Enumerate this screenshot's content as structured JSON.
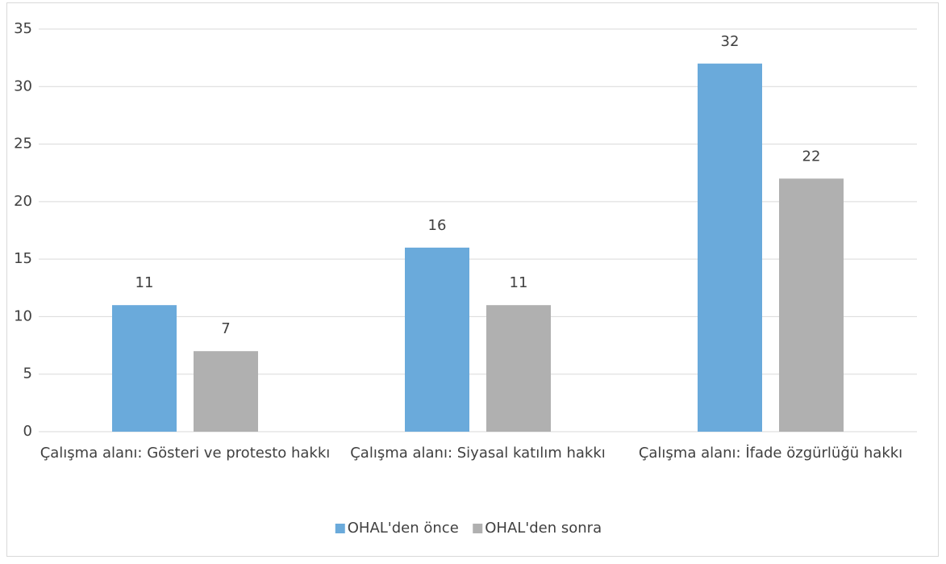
{
  "chart_data": {
    "type": "bar",
    "categories": [
      "Çalışma alanı: Gösteri ve protesto hakkı",
      "Çalışma alanı: Siyasal katılım hakkı",
      "Çalışma alanı: İfade özgürlüğü hakkı"
    ],
    "series": [
      {
        "name": "OHAL'den önce",
        "color": "#6aaadb",
        "values": [
          11,
          16,
          32
        ]
      },
      {
        "name": "OHAL'den sonra",
        "color": "#b0b0b0",
        "values": [
          7,
          11,
          22
        ]
      }
    ],
    "ylim": [
      0,
      35
    ],
    "yticks": [
      0,
      5,
      10,
      15,
      20,
      25,
      30,
      35
    ],
    "grid": true,
    "legend": "bottom"
  }
}
